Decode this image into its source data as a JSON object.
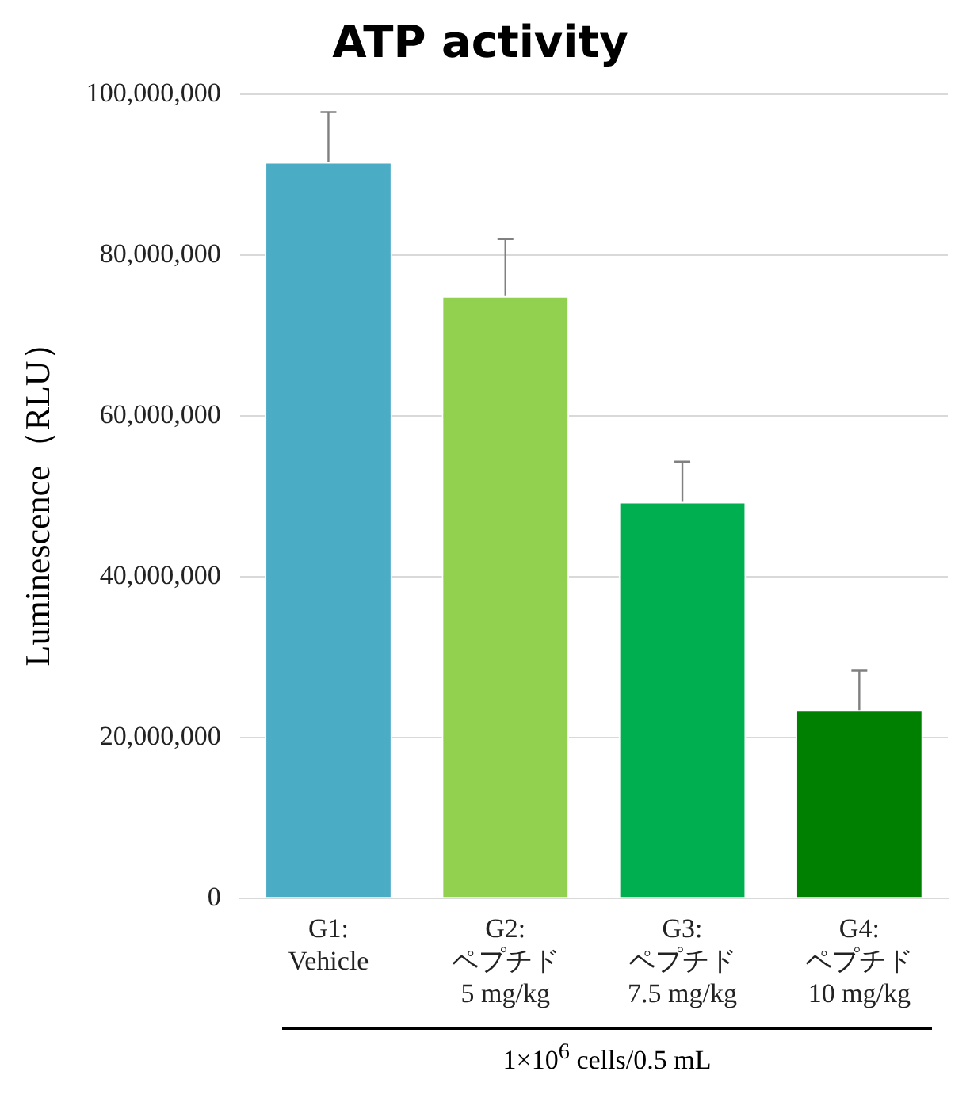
{
  "chart_data": {
    "type": "bar",
    "title": "ATP activity",
    "ylabel": "Luminescence（RLU）",
    "categories": [
      "G1:\nVehicle",
      "G2:\nペプチド\n5 mg/kg",
      "G3:\nペプチド\n7.5 mg/kg",
      "G4:\nペプチド\n10 mg/kg"
    ],
    "values": [
      91600000,
      74900000,
      49300000,
      23400000
    ],
    "errors": [
      6200000,
      7100000,
      5000000,
      4900000
    ],
    "colors": [
      "#4bacc6",
      "#92d050",
      "#00b050",
      "#008000"
    ],
    "ylim": [
      0,
      100000000
    ],
    "yticks": [
      0,
      {
        "value": 20000000,
        "label": "20,000,000"
      },
      {
        "value": 40000000,
        "label": "40,000,000"
      },
      {
        "value": 60000000,
        "label": "60,000,000"
      },
      {
        "value": 80000000,
        "label": "80,000,000"
      },
      {
        "value": 100000000,
        "label": "100,000,000"
      }
    ],
    "grid": "y",
    "legend": false,
    "annotations": [
      "1×10$^{6}$ cells/0.5 mL"
    ]
  }
}
